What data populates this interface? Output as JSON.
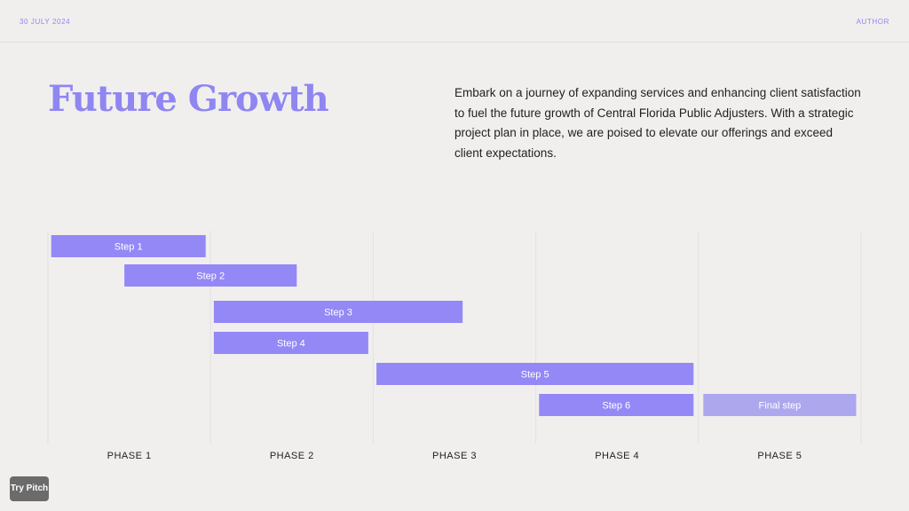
{
  "header": {
    "date": "30 JULY 2024",
    "author": "AUTHOR"
  },
  "title": "Future Growth",
  "description": "Embark on a journey of expanding services and enhancing client satisfaction to fuel the future growth of Central Florida Public Adjusters. With a strategic project plan in place, we are poised to elevate our offerings and exceed client expectations.",
  "colors": {
    "accent": "#8f86f2",
    "bar": "#9488f6",
    "final_bar": "#ada7ee",
    "background": "#f0efee"
  },
  "chart_data": {
    "type": "gantt",
    "phases": [
      "PHASE 1",
      "PHASE 2",
      "PHASE 3",
      "PHASE 4",
      "PHASE 5"
    ],
    "tasks": [
      {
        "label": "Step 1",
        "start": 0.02,
        "end": 0.97
      },
      {
        "label": "Step 2",
        "start": 0.47,
        "end": 1.53
      },
      {
        "label": "Step 3",
        "start": 1.02,
        "end": 2.55
      },
      {
        "label": "Step 4",
        "start": 1.02,
        "end": 1.97
      },
      {
        "label": "Step 5",
        "start": 2.02,
        "end": 3.97
      },
      {
        "label": "Step 6",
        "start": 3.02,
        "end": 3.97
      },
      {
        "label": "Final step",
        "start": 4.03,
        "end": 4.97,
        "final": true
      }
    ]
  },
  "footer": {
    "try_pitch": "Try Pitch"
  }
}
